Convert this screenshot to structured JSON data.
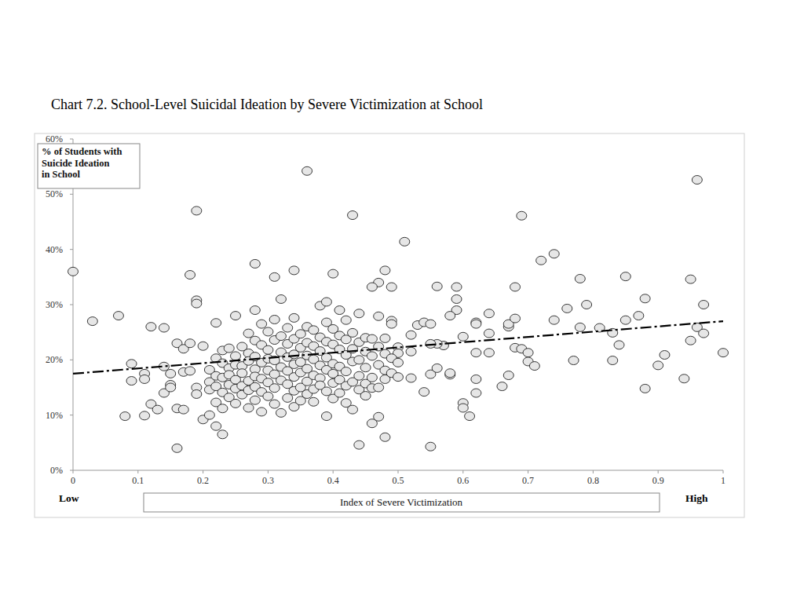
{
  "chart_data": {
    "type": "scatter",
    "title": "Chart 7.2. School-Level Suicidal Ideation by Severe Victimization at School",
    "y_label": [
      "% of Students with",
      "Suicide Ideation",
      "in School"
    ],
    "x_label": "Index of Severe Victimization",
    "x_low_label": "Low",
    "x_high_label": "High",
    "xlim": [
      0,
      1
    ],
    "ylim": [
      0,
      60
    ],
    "xticks": [
      0,
      0.1,
      0.2,
      0.3,
      0.4,
      0.5,
      0.6,
      0.7,
      0.8,
      0.9,
      1
    ],
    "yticks": [
      {
        "value": 0,
        "label": "0%"
      },
      {
        "value": 10,
        "label": "10%"
      },
      {
        "value": 20,
        "label": "20%"
      },
      {
        "value": 30,
        "label": "30%"
      },
      {
        "value": 40,
        "label": "40%"
      },
      {
        "value": 50,
        "label": "50%"
      },
      {
        "value": 60,
        "label": "60%"
      }
    ],
    "grid": false,
    "series": [
      {
        "type": "scatter",
        "marker": "circle",
        "color": "#e6e6e6",
        "x": [
          0,
          0.03,
          0.07,
          0.08,
          0.09,
          0.09,
          0.11,
          0.11,
          0.11,
          0.12,
          0.12,
          0.13,
          0.14,
          0.15,
          0.15,
          0.15,
          0.14,
          0.14,
          0.16,
          0.16,
          0.16,
          0.17,
          0.17,
          0.17,
          0.18,
          0.18,
          0.18,
          0.19,
          0.19,
          0.19,
          0.19,
          0.19,
          0.2,
          0.2,
          0.21,
          0.21,
          0.22,
          0.22,
          0.23,
          0.25,
          0.28,
          0.28,
          0.31,
          0.32,
          0.34,
          0.36,
          0.4,
          0.41,
          0.43,
          0.48,
          0.47,
          0.46,
          0.49,
          0.51,
          0.44,
          0.48,
          0.46,
          0.47,
          0.39,
          0.55,
          0.54,
          0.53,
          0.54,
          0.55,
          0.56,
          0.59,
          0.59,
          0.59,
          0.58,
          0.6,
          0.6,
          0.6,
          0.61,
          0.62,
          0.62,
          0.62,
          0.62,
          0.62,
          0.64,
          0.64,
          0.64,
          0.66,
          0.67,
          0.67,
          0.67,
          0.68,
          0.68,
          0.68,
          0.69,
          0.69,
          0.7,
          0.7,
          0.71,
          0.72,
          0.74,
          0.74,
          0.76,
          0.77,
          0.78,
          0.78,
          0.79,
          0.81,
          0.83,
          0.83,
          0.84,
          0.85,
          0.85,
          0.87,
          0.88,
          0.88,
          0.9,
          0.91,
          0.94,
          0.95,
          0.95,
          0.96,
          0.96,
          0.97,
          0.97,
          1,
          0.57,
          0.58,
          0.58,
          0.56,
          0.55,
          0.55,
          0.56,
          0.52,
          0.52,
          0.52,
          0.5,
          0.5,
          0.21,
          0.21,
          0.22,
          0.22,
          0.22,
          0.22,
          0.23,
          0.23,
          0.23,
          0.23,
          0.23,
          0.24,
          0.24,
          0.24,
          0.24,
          0.24,
          0.25,
          0.25,
          0.25,
          0.25,
          0.25,
          0.26,
          0.26,
          0.26,
          0.26,
          0.26,
          0.27,
          0.27,
          0.27,
          0.27,
          0.27,
          0.27,
          0.28,
          0.28,
          0.28,
          0.28,
          0.28,
          0.28,
          0.29,
          0.29,
          0.29,
          0.29,
          0.29,
          0.29,
          0.3,
          0.3,
          0.3,
          0.3,
          0.3,
          0.3,
          0.31,
          0.31,
          0.31,
          0.31,
          0.31,
          0.31,
          0.32,
          0.32,
          0.32,
          0.32,
          0.32,
          0.33,
          0.33,
          0.33,
          0.33,
          0.33,
          0.33,
          0.34,
          0.34,
          0.34,
          0.34,
          0.34,
          0.34,
          0.34,
          0.35,
          0.35,
          0.35,
          0.35,
          0.35,
          0.35,
          0.36,
          0.36,
          0.36,
          0.36,
          0.36,
          0.36,
          0.37,
          0.37,
          0.37,
          0.37,
          0.37,
          0.37,
          0.38,
          0.38,
          0.38,
          0.38,
          0.38,
          0.38,
          0.39,
          0.39,
          0.39,
          0.39,
          0.39,
          0.39,
          0.4,
          0.4,
          0.4,
          0.4,
          0.4,
          0.4,
          0.41,
          0.41,
          0.41,
          0.41,
          0.41,
          0.42,
          0.42,
          0.42,
          0.42,
          0.42,
          0.42,
          0.43,
          0.43,
          0.43,
          0.43,
          0.43,
          0.44,
          0.44,
          0.44,
          0.44,
          0.44,
          0.45,
          0.45,
          0.45,
          0.45,
          0.45,
          0.46,
          0.46,
          0.46,
          0.46,
          0.47,
          0.47,
          0.47,
          0.47,
          0.48,
          0.48,
          0.48,
          0.48,
          0.49,
          0.49,
          0.49,
          0.49,
          0.5,
          0.5
        ],
        "values": [
          36,
          27,
          28,
          9.8,
          19.3,
          16.2,
          9.9,
          17.5,
          16.5,
          12,
          26,
          11,
          14,
          15.5,
          15,
          17.5,
          18.8,
          25.8,
          23,
          11.2,
          4,
          11,
          17.8,
          22,
          23,
          35.4,
          18,
          47,
          30.8,
          30.2,
          15,
          13.8,
          22.5,
          9.2,
          10,
          16,
          26.7,
          8,
          6.5,
          28,
          37.4,
          29,
          35,
          31,
          36.2,
          54.2,
          35.6,
          29,
          46.2,
          36.2,
          34,
          33.2,
          33.2,
          41.4,
          4.6,
          6,
          8.5,
          9.7,
          9.8,
          4.3,
          14.2,
          26.3,
          26.8,
          26.5,
          33.3,
          33.2,
          31,
          29,
          28,
          24.2,
          12.2,
          11.3,
          9.8,
          14,
          16.5,
          21.3,
          26.8,
          26.5,
          28.4,
          24.8,
          21.3,
          15.2,
          17.2,
          26,
          26.5,
          27.5,
          33.2,
          22.2,
          22,
          46.1,
          21.3,
          19.7,
          18.9,
          38,
          39.2,
          27.2,
          29.3,
          19.9,
          34.7,
          25.9,
          30,
          25.8,
          19.9,
          24.9,
          22.7,
          35.1,
          27.2,
          28,
          14.8,
          31.1,
          19,
          20.9,
          16.6,
          34.6,
          23.5,
          25.9,
          52.6,
          30,
          24.8,
          21.3,
          22.6,
          17.3,
          17.6,
          22.9,
          22.9,
          17.4,
          18.5,
          24.5,
          21.5,
          16.7,
          22.3,
          21.2,
          18.2,
          14.6,
          20.3,
          17.1,
          15.2,
          12.3,
          21.7,
          19.4,
          16.8,
          14.1,
          11.2,
          22.1,
          18.5,
          17.3,
          15.5,
          13.2,
          20.7,
          19.1,
          16.4,
          14.8,
          12.1,
          22.4,
          18.9,
          17.6,
          15.3,
          13.7,
          24.8,
          21.2,
          19.8,
          16.2,
          14.5,
          11.3,
          23.5,
          20.6,
          18.3,
          17,
          15.1,
          12.7,
          26.5,
          22.7,
          19.5,
          16.6,
          14.2,
          10.6,
          25.1,
          21.8,
          20.2,
          18.1,
          15.9,
          13.4,
          27.3,
          23.6,
          19.9,
          17.4,
          14.9,
          12,
          24.3,
          21.4,
          18.7,
          16.3,
          10.4,
          25.8,
          22.9,
          20.5,
          18,
          15.6,
          13.1,
          27.6,
          23.8,
          21,
          19.2,
          16.9,
          14.4,
          11.5,
          24.7,
          22.2,
          19.6,
          17.7,
          15,
          12.6,
          26,
          23.1,
          20.8,
          18.4,
          16.1,
          13.8,
          25.4,
          22.5,
          20.1,
          17.2,
          14.7,
          12.4,
          29.8,
          24.1,
          21.6,
          19,
          16.7,
          15.4,
          30.5,
          26.8,
          23.3,
          20.4,
          18.2,
          14.3,
          25.6,
          22.8,
          19.3,
          17.5,
          15.8,
          13,
          24.4,
          21.9,
          18.8,
          16.4,
          14,
          27.2,
          23.7,
          20.9,
          17.9,
          15.3,
          12.2,
          24.9,
          22,
          19.7,
          16,
          11,
          28.4,
          23.2,
          20,
          17.1,
          14.6,
          24,
          21.5,
          18.6,
          15.7,
          13.5,
          23.8,
          20.7,
          16.8,
          14.9,
          27.9,
          22.4,
          19.1,
          15,
          23.9,
          21.1,
          18.1,
          16.5,
          27.1,
          26.5,
          20.3,
          17.6,
          19.5,
          16.9
        ]
      },
      {
        "type": "line",
        "line_style": "dashdot",
        "color": "#000000",
        "x": [
          0,
          1
        ],
        "values": [
          17.5,
          27
        ]
      }
    ]
  }
}
